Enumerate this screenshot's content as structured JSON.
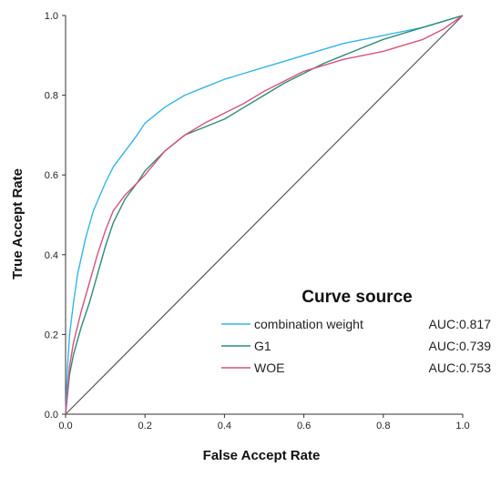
{
  "chart_data": {
    "type": "line",
    "title": "",
    "xlabel": "False Accept Rate",
    "ylabel": "True Accept Rate",
    "xlim": [
      0,
      1
    ],
    "ylim": [
      0,
      1
    ],
    "x_ticks": [
      "0.0",
      "0.2",
      "0.4",
      "0.6",
      "0.8",
      "1.0"
    ],
    "y_ticks": [
      "0.0",
      "0.2",
      "0.4",
      "0.6",
      "0.8",
      "1.0"
    ],
    "grid": false,
    "legend": {
      "title": "Curve source",
      "placement": "bottom-right"
    },
    "reference_line": {
      "x": [
        0,
        1
      ],
      "y": [
        0,
        1
      ],
      "color": "#555555"
    },
    "series": [
      {
        "name": "combination weight",
        "auc_label": "AUC:0.817",
        "color": "#33b5e5",
        "x": [
          0,
          0.005,
          0.01,
          0.02,
          0.03,
          0.05,
          0.07,
          0.1,
          0.12,
          0.15,
          0.18,
          0.2,
          0.25,
          0.3,
          0.35,
          0.4,
          0.45,
          0.5,
          0.55,
          0.6,
          0.65,
          0.7,
          0.75,
          0.8,
          0.85,
          0.9,
          0.95,
          1.0
        ],
        "y": [
          0,
          0.12,
          0.2,
          0.28,
          0.35,
          0.44,
          0.51,
          0.58,
          0.62,
          0.66,
          0.7,
          0.73,
          0.77,
          0.8,
          0.82,
          0.84,
          0.855,
          0.87,
          0.885,
          0.9,
          0.915,
          0.93,
          0.94,
          0.95,
          0.96,
          0.97,
          0.985,
          1.0
        ]
      },
      {
        "name": "G1",
        "auc_label": "AUC:0.739",
        "color": "#2e8b7a",
        "x": [
          0,
          0.01,
          0.02,
          0.04,
          0.06,
          0.08,
          0.1,
          0.12,
          0.15,
          0.18,
          0.2,
          0.25,
          0.3,
          0.35,
          0.4,
          0.45,
          0.5,
          0.55,
          0.6,
          0.65,
          0.7,
          0.75,
          0.8,
          0.85,
          0.9,
          0.95,
          1.0
        ],
        "y": [
          0,
          0.1,
          0.15,
          0.22,
          0.28,
          0.35,
          0.42,
          0.48,
          0.54,
          0.58,
          0.61,
          0.66,
          0.7,
          0.72,
          0.74,
          0.77,
          0.8,
          0.83,
          0.855,
          0.88,
          0.9,
          0.92,
          0.94,
          0.955,
          0.97,
          0.985,
          1.0
        ]
      },
      {
        "name": "WOE",
        "auc_label": "AUC:0.753",
        "color": "#d6537a",
        "x": [
          0,
          0.01,
          0.02,
          0.04,
          0.06,
          0.08,
          0.1,
          0.12,
          0.15,
          0.18,
          0.2,
          0.25,
          0.3,
          0.35,
          0.4,
          0.45,
          0.5,
          0.55,
          0.6,
          0.65,
          0.7,
          0.75,
          0.8,
          0.85,
          0.9,
          0.95,
          1.0
        ],
        "y": [
          0,
          0.12,
          0.18,
          0.26,
          0.33,
          0.4,
          0.46,
          0.51,
          0.55,
          0.58,
          0.6,
          0.66,
          0.7,
          0.73,
          0.755,
          0.78,
          0.81,
          0.835,
          0.86,
          0.875,
          0.89,
          0.9,
          0.91,
          0.925,
          0.94,
          0.965,
          1.0
        ]
      }
    ]
  }
}
